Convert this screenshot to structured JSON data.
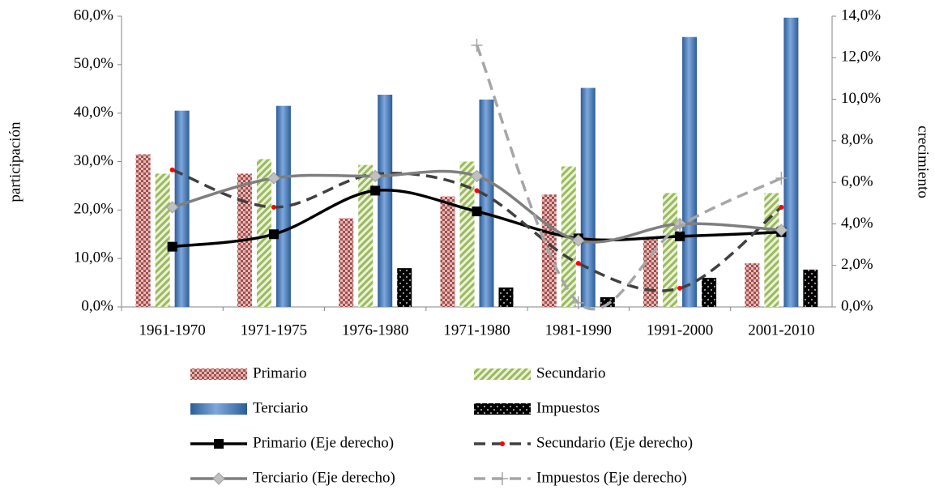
{
  "chart_data": {
    "type": "bar",
    "y_label": "participación",
    "y2_label": "crecimiento",
    "categories": [
      "1961-1970",
      "1971-1975",
      "1976-1980",
      "1971-1980",
      "1981-1990",
      "1991-2000",
      "2001-2010"
    ],
    "ylim": [
      0,
      60
    ],
    "yticks": [
      {
        "value": 0,
        "label": "0,0%"
      },
      {
        "value": 10,
        "label": "10,0%"
      },
      {
        "value": 20,
        "label": "20,0%"
      },
      {
        "value": 30,
        "label": "30,0%"
      },
      {
        "value": 40,
        "label": "40,0%"
      },
      {
        "value": 50,
        "label": "50,0%"
      },
      {
        "value": 60,
        "label": "60,0%"
      }
    ],
    "y2lim": [
      0,
      14
    ],
    "y2ticks": [
      {
        "value": 0,
        "label": "0,0%"
      },
      {
        "value": 2,
        "label": "2,0%"
      },
      {
        "value": 4,
        "label": "4,0%"
      },
      {
        "value": 6,
        "label": "6,0%"
      },
      {
        "value": 8,
        "label": "8,0%"
      },
      {
        "value": 10,
        "label": "10,0%"
      },
      {
        "value": 12,
        "label": "12,0%"
      },
      {
        "value": 14,
        "label": "14,0%"
      }
    ],
    "series": [
      {
        "name": "Primario",
        "type": "bar",
        "color": "#a0504d",
        "values": [
          31.5,
          27.5,
          18.3,
          22.8,
          23.2,
          14.0,
          9.0
        ]
      },
      {
        "name": "Secundario",
        "type": "bar",
        "color": "#9bbb59",
        "values": [
          27.5,
          30.5,
          29.3,
          30.0,
          29.0,
          23.5,
          23.5
        ]
      },
      {
        "name": "Terciario",
        "type": "bar",
        "color": "#4f81bd",
        "values": [
          40.5,
          41.5,
          43.8,
          42.8,
          45.2,
          55.7,
          59.7
        ]
      },
      {
        "name": "Impuestos",
        "type": "bar",
        "color": "#000000",
        "values": [
          null,
          null,
          8.0,
          4.0,
          2.0,
          6.0,
          7.7
        ]
      },
      {
        "name": "Primario (Eje derecho)",
        "type": "line",
        "axis": "y2",
        "color": "#000000",
        "values": [
          2.9,
          3.5,
          5.6,
          4.6,
          3.3,
          3.4,
          3.6
        ]
      },
      {
        "name": "Secundario (Eje derecho)",
        "type": "line",
        "axis": "y2",
        "color": "#404040",
        "values": [
          6.6,
          4.8,
          6.4,
          5.6,
          2.1,
          0.9,
          4.8
        ]
      },
      {
        "name": "Terciario (Eje derecho)",
        "type": "line",
        "axis": "y2",
        "color": "#7f7f7f",
        "values": [
          4.8,
          6.2,
          6.3,
          6.3,
          3.2,
          4.0,
          3.7
        ]
      },
      {
        "name": "Impuestos (Eje derecho)",
        "type": "line",
        "axis": "y2",
        "color": "#a6a6a6",
        "values": [
          null,
          null,
          null,
          12.6,
          0.2,
          3.9,
          6.2
        ]
      }
    ]
  }
}
